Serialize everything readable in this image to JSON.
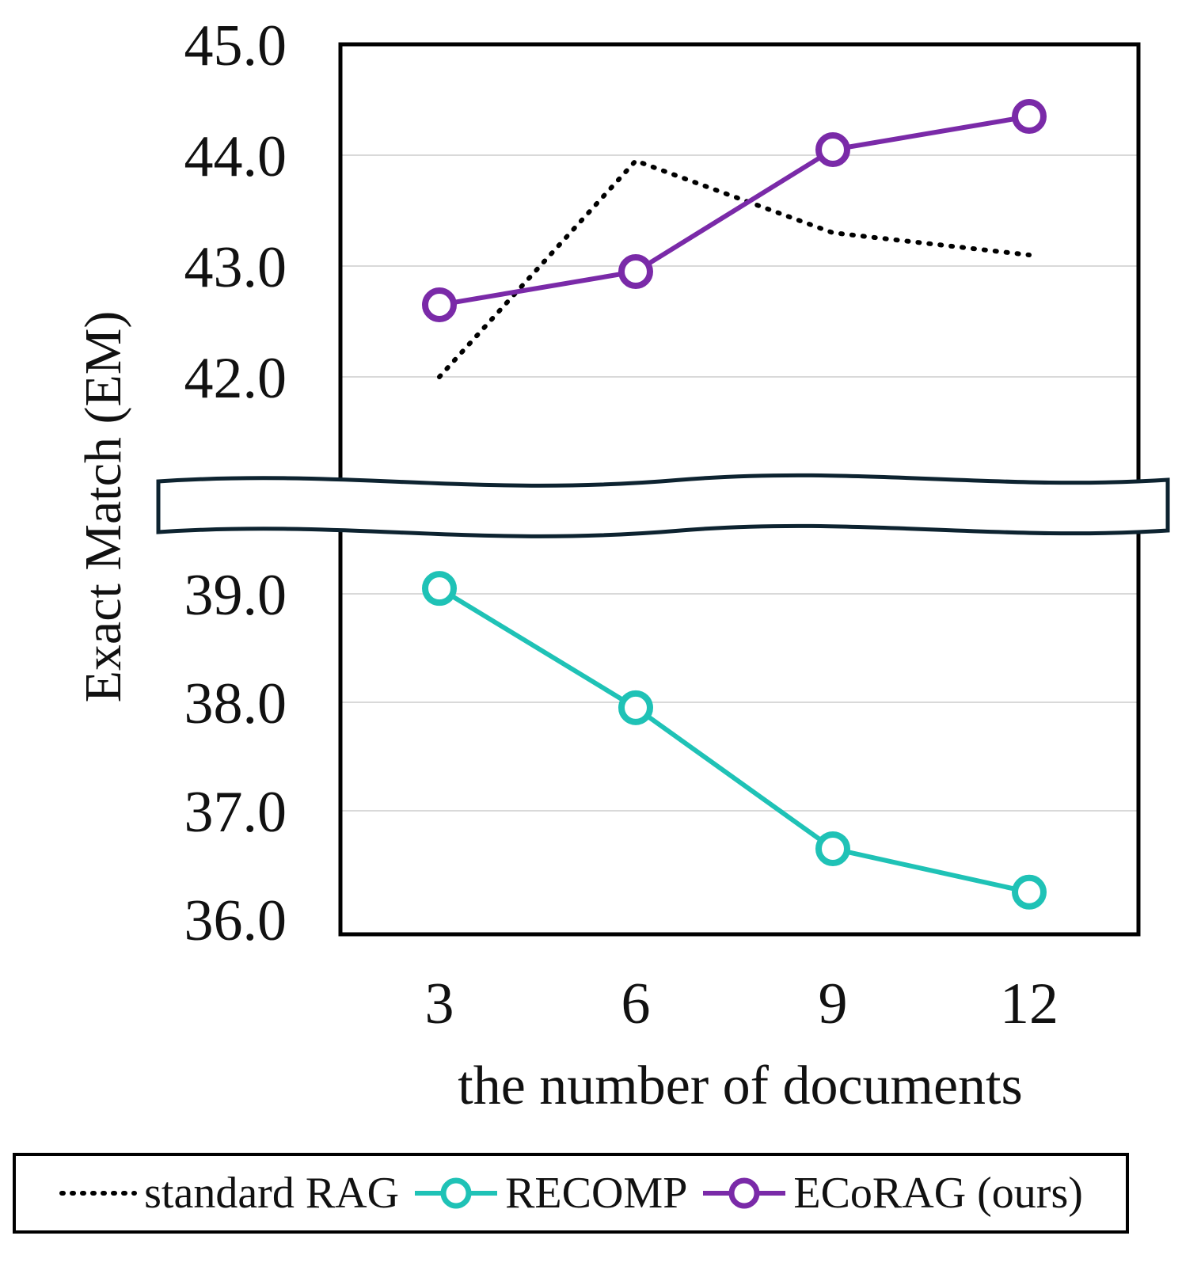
{
  "chart_data": {
    "type": "line",
    "title": "",
    "xlabel": "the number of documents",
    "ylabel": "Exact Match (EM)",
    "x": [
      3,
      6,
      9,
      12
    ],
    "x_tick_labels": [
      "3",
      "6",
      "9",
      "12"
    ],
    "y_ticks_upper": [
      "45.0",
      "44.0",
      "43.0",
      "42.0"
    ],
    "y_ticks_lower": [
      "39.0",
      "38.0",
      "37.0",
      "36.0"
    ],
    "ylim_upper": [
      41.0,
      45.0
    ],
    "ylim_lower": [
      36.0,
      39.5
    ],
    "axis_break": true,
    "grid": true,
    "legend_position": "bottom",
    "series": [
      {
        "name": "standard RAG",
        "values": [
          42.0,
          43.95,
          43.3,
          43.1
        ],
        "color": "#000000",
        "style": "dotted",
        "marker": "none"
      },
      {
        "name": "RECOMP",
        "values": [
          39.05,
          37.95,
          36.65,
          36.25
        ],
        "color": "#1fc2b6",
        "style": "solid",
        "marker": "circle"
      },
      {
        "name": "ECoRAG (ours)",
        "values": [
          42.65,
          42.95,
          44.05,
          44.35
        ],
        "color": "#7a2aa8",
        "style": "solid",
        "marker": "circle"
      }
    ]
  }
}
